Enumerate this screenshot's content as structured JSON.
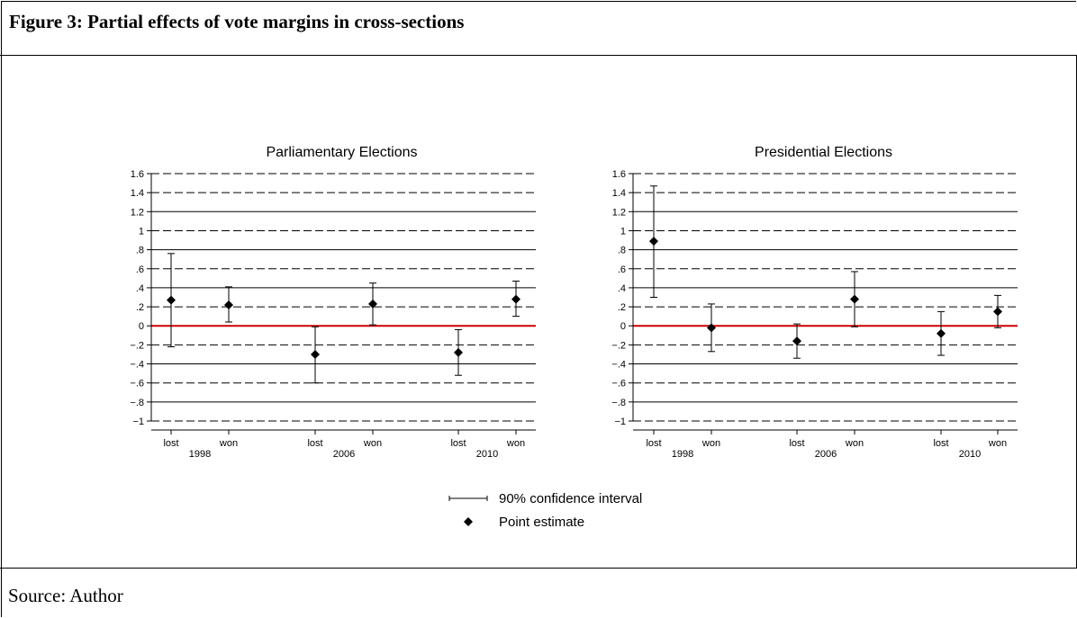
{
  "figure": {
    "title": "Figure 3: Partial effects of vote margins in cross-sections",
    "source": "Source: Author"
  },
  "legend": {
    "ci_label": "90% confidence interval",
    "point_label": "Point estimate"
  },
  "colors": {
    "zero_line": "#cc0000",
    "marker": "#000000",
    "grid": "#000000"
  },
  "chart_data": [
    {
      "type": "scatter",
      "title": "Parliamentary Elections",
      "ylim": [
        -1,
        1.6
      ],
      "yticks": [
        -1,
        -0.8,
        -0.6,
        -0.4,
        -0.2,
        0,
        0.2,
        0.4,
        0.6,
        0.8,
        1,
        1.2,
        1.4,
        1.6
      ],
      "ytick_labels": [
        "−1",
        "−.8",
        "−.6",
        "−.4",
        "−.2",
        "0",
        ".2",
        ".4",
        ".6",
        ".8",
        "1",
        "1.2",
        "1.4",
        "1.6"
      ],
      "categories": [
        "lost",
        "won",
        "lost",
        "won",
        "lost",
        "won"
      ],
      "groups": [
        "1998",
        "2006",
        "2010"
      ],
      "estimates": [
        0.27,
        0.22,
        -0.3,
        0.23,
        -0.28,
        0.28
      ],
      "ci_low": [
        -0.22,
        0.04,
        -0.6,
        0.01,
        -0.52,
        0.1
      ],
      "ci_high": [
        0.76,
        0.41,
        -0.01,
        0.45,
        -0.04,
        0.47
      ]
    },
    {
      "type": "scatter",
      "title": "Presidential Elections",
      "ylim": [
        -1,
        1.6
      ],
      "yticks": [
        -1,
        -0.8,
        -0.6,
        -0.4,
        -0.2,
        0,
        0.2,
        0.4,
        0.6,
        0.8,
        1,
        1.2,
        1.4,
        1.6
      ],
      "ytick_labels": [
        "−1",
        "−.8",
        "−.6",
        "−.4",
        "−.2",
        "0",
        ".2",
        ".4",
        ".6",
        ".8",
        "1",
        "1.2",
        "1.4",
        "1.6"
      ],
      "categories": [
        "lost",
        "won",
        "lost",
        "won",
        "lost",
        "won"
      ],
      "groups": [
        "1998",
        "2006",
        "2010"
      ],
      "estimates": [
        0.89,
        -0.02,
        -0.16,
        0.28,
        -0.08,
        0.15
      ],
      "ci_low": [
        0.3,
        -0.27,
        -0.34,
        -0.01,
        -0.31,
        -0.02
      ],
      "ci_high": [
        1.47,
        0.23,
        0.02,
        0.57,
        0.15,
        0.32
      ]
    }
  ]
}
